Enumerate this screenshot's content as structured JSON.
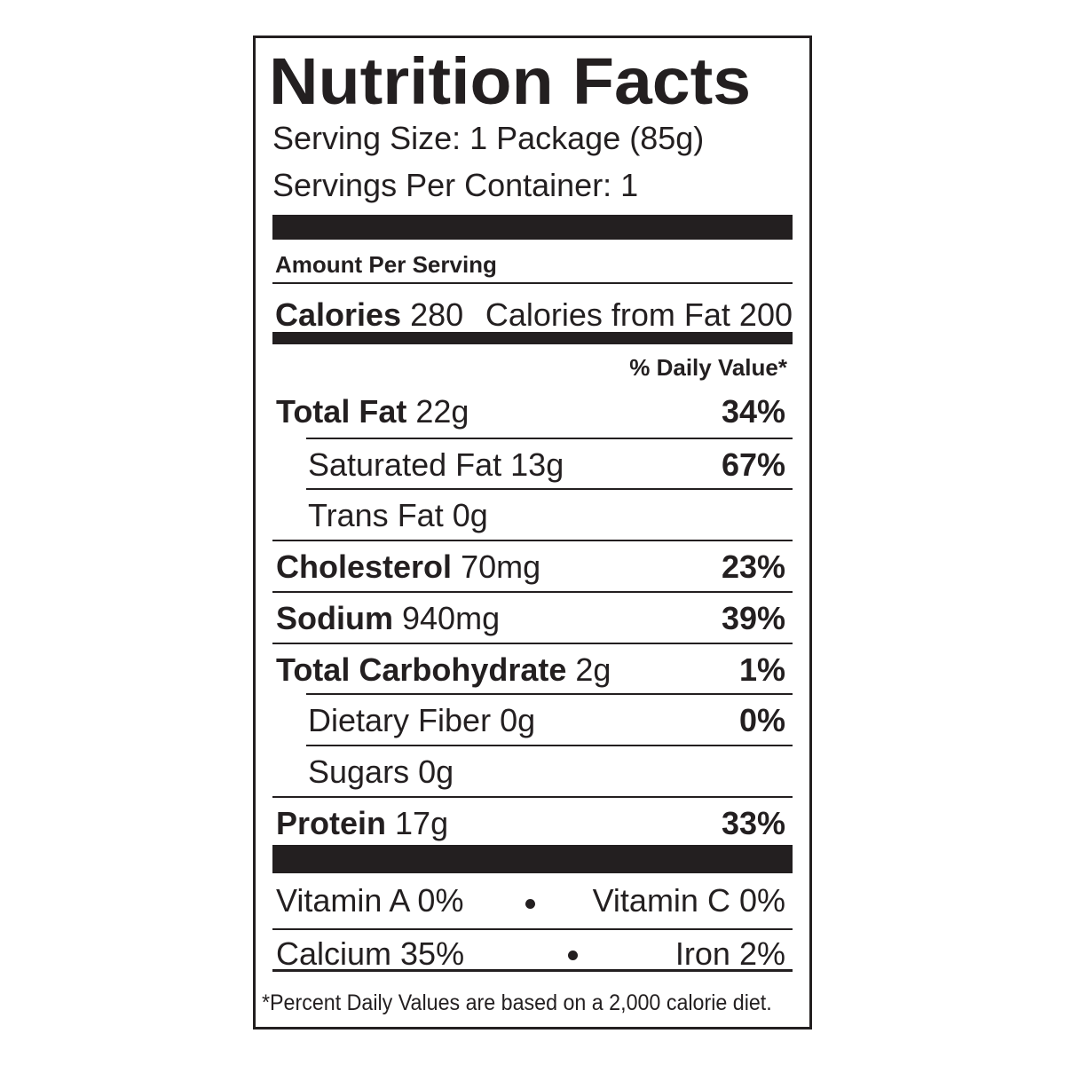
{
  "title": "Nutrition Facts",
  "serving_size": "Serving Size: 1 Package (85g)",
  "servings_per_container": "Servings Per Container: 1",
  "amount_per_serving": "Amount Per Serving",
  "calories": {
    "label": "Calories",
    "value": "280",
    "from_fat": "Calories from Fat 200"
  },
  "daily_value_header": "% Daily Value*",
  "nutrients": [
    {
      "name": "Total Fat",
      "amount": "22g",
      "dv": "34%",
      "sub": [
        {
          "name": "Saturated Fat",
          "amount": "13g",
          "dv": "67%"
        },
        {
          "name": "Trans Fat",
          "amount": "0g"
        }
      ]
    },
    {
      "name": "Cholesterol",
      "amount": "70mg",
      "dv": "23%"
    },
    {
      "name": "Sodium",
      "amount": "940mg",
      "dv": "39%"
    },
    {
      "name": "Total Carbohydrate",
      "amount": "2g",
      "dv": "1%",
      "sub": [
        {
          "name": "Dietary Fiber",
          "amount": "0g",
          "dv": "0%"
        },
        {
          "name": "Sugars",
          "amount": "0g"
        }
      ]
    },
    {
      "name": "Protein",
      "amount": "17g",
      "dv": "33%"
    }
  ],
  "vitamins": [
    {
      "left": "Vitamin A 0%",
      "right": "Vitamin C 0%"
    },
    {
      "left": "Calcium 35%",
      "right": "Iron 2%"
    }
  ],
  "footnote": "*Percent Daily Values are based on a 2,000 calorie diet."
}
